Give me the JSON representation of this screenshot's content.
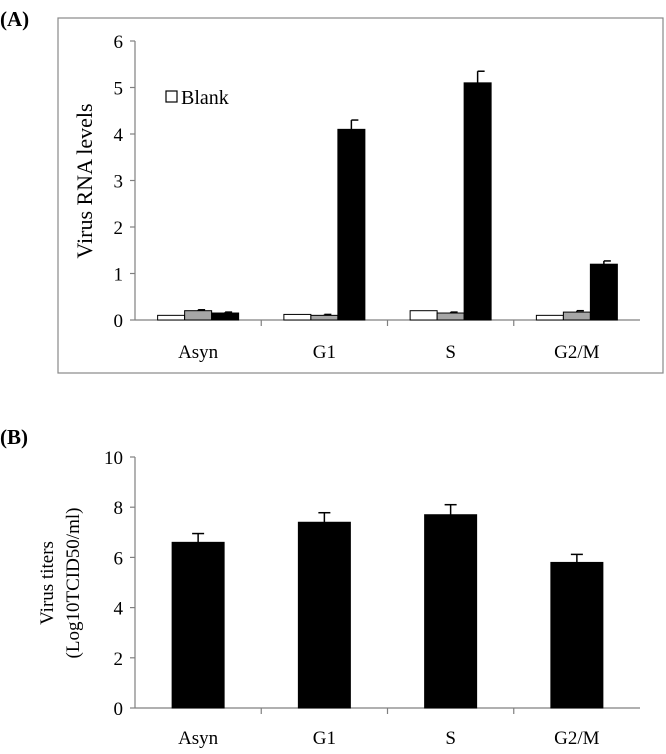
{
  "panels": {
    "a_label": "(A)",
    "b_label": "(B)"
  },
  "chart_data": [
    {
      "id": "A",
      "type": "bar",
      "title": "",
      "xlabel": "",
      "ylabel": "Virus RNA levels",
      "ylim": [
        0,
        6
      ],
      "yticks": [
        "0",
        "1",
        "2",
        "3",
        "4",
        "5",
        "6"
      ],
      "grid": false,
      "legend": {
        "position": "top-left",
        "entries": [
          "Blank"
        ]
      },
      "categories": [
        "Asyn",
        "G1",
        "S",
        "G2/M"
      ],
      "series": [
        {
          "name": "Blank",
          "color": "#ffffff",
          "values": [
            0.1,
            0.12,
            0.2,
            0.1
          ],
          "errors": [
            0,
            0,
            0,
            0
          ]
        },
        {
          "name": "",
          "color": "#a6a6a6",
          "values": [
            0.2,
            0.1,
            0.15,
            0.17
          ],
          "errors": [
            0.02,
            0.02,
            0.02,
            0.03
          ]
        },
        {
          "name": "",
          "color": "#000000",
          "values": [
            0.15,
            4.1,
            5.1,
            1.2
          ],
          "errors": [
            0.02,
            0.2,
            0.25,
            0.07
          ]
        }
      ]
    },
    {
      "id": "B",
      "type": "bar",
      "title": "",
      "xlabel": "",
      "ylabel_line1": "Virus titers",
      "ylabel_line2": "(Log10TCID50/ml)",
      "ylim": [
        0,
        10
      ],
      "yticks": [
        "0",
        "2",
        "4",
        "6",
        "8",
        "10"
      ],
      "grid": false,
      "categories": [
        "Asyn",
        "G1",
        "S",
        "G2/M"
      ],
      "series": [
        {
          "name": "",
          "color": "#000000",
          "values": [
            6.6,
            7.4,
            7.7,
            5.8
          ],
          "errors": [
            0.35,
            0.38,
            0.4,
            0.32
          ]
        }
      ]
    }
  ]
}
